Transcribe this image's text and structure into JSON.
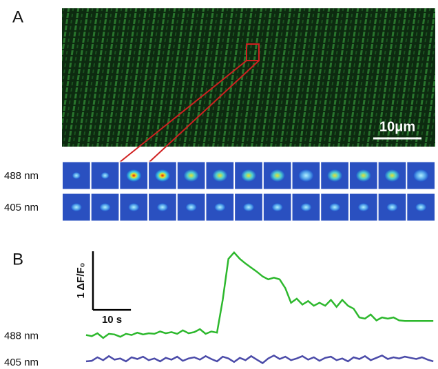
{
  "panel_a": {
    "label": "A",
    "scale_bar": "10μm",
    "rows": [
      "488 nm",
      "405 nm"
    ]
  },
  "panel_b": {
    "label": "B"
  },
  "chart_data": {
    "type": "line",
    "x": [
      0,
      1.5,
      3,
      4.5,
      6,
      7.5,
      9,
      10.5,
      12,
      13.5,
      15,
      16.5,
      18,
      19.5,
      21,
      22.5,
      24,
      25.5,
      27,
      28.5,
      30,
      31.5,
      33,
      34.5,
      36,
      37.5,
      39,
      40.5,
      42,
      43.5,
      45,
      46.5,
      48,
      49.5,
      51,
      52.5,
      54,
      55.5,
      57,
      58.5,
      60,
      61.5,
      63,
      64.5,
      66,
      67.5,
      69,
      70.5,
      72,
      73.5,
      75,
      76.5,
      78,
      79.5,
      81,
      82.5,
      84,
      85.5,
      87,
      88.5,
      90,
      91.5
    ],
    "xlim": [
      0,
      92
    ],
    "ylim": [
      -0.58,
      1.5
    ],
    "scale_x": {
      "value": 10,
      "label": "10 s"
    },
    "scale_y": {
      "value": 1,
      "label": "1 ΔF/F₀"
    },
    "series": [
      {
        "name": "488 nm",
        "color": "#2db82d",
        "values": [
          0,
          -0.02,
          0.03,
          -0.05,
          0.02,
          0.01,
          -0.03,
          0.02,
          0,
          0.04,
          0.01,
          0.03,
          0.02,
          0.06,
          0.03,
          0.05,
          0.02,
          0.08,
          0.03,
          0.05,
          0.1,
          0.02,
          0.06,
          0.04,
          0.6,
          1.3,
          1.41,
          1.3,
          1.22,
          1.15,
          1.08,
          1.0,
          0.95,
          0.98,
          0.95,
          0.8,
          0.55,
          0.62,
          0.52,
          0.58,
          0.5,
          0.55,
          0.5,
          0.6,
          0.48,
          0.6,
          0.5,
          0.45,
          0.3,
          0.28,
          0.35,
          0.25,
          0.3,
          0.28,
          0.3,
          0.25,
          0.24,
          0.24,
          0.24,
          0.24,
          0.24,
          0.24
        ]
      },
      {
        "name": "405 nm",
        "color": "#4a4aa8",
        "values": [
          -0.45,
          -0.44,
          -0.38,
          -0.43,
          -0.36,
          -0.42,
          -0.4,
          -0.45,
          -0.38,
          -0.41,
          -0.37,
          -0.43,
          -0.4,
          -0.45,
          -0.39,
          -0.42,
          -0.37,
          -0.44,
          -0.4,
          -0.38,
          -0.42,
          -0.36,
          -0.41,
          -0.45,
          -0.37,
          -0.4,
          -0.46,
          -0.39,
          -0.43,
          -0.36,
          -0.42,
          -0.48,
          -0.4,
          -0.35,
          -0.41,
          -0.37,
          -0.43,
          -0.4,
          -0.36,
          -0.42,
          -0.38,
          -0.44,
          -0.39,
          -0.37,
          -0.43,
          -0.4,
          -0.45,
          -0.38,
          -0.41,
          -0.36,
          -0.43,
          -0.39,
          -0.35,
          -0.41,
          -0.38,
          -0.4,
          -0.37,
          -0.39,
          -0.41,
          -0.38,
          -0.42,
          -0.45
        ]
      }
    ]
  }
}
